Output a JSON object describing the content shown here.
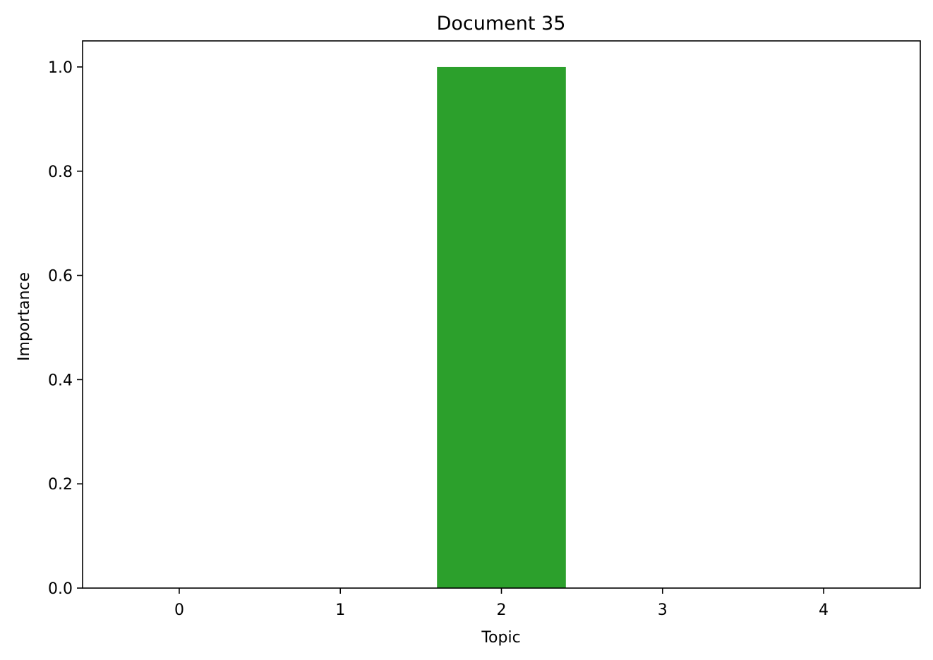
{
  "chart_data": {
    "type": "bar",
    "title": "Document 35",
    "xlabel": "Topic",
    "ylabel": "Importance",
    "categories": [
      "0",
      "1",
      "2",
      "3",
      "4"
    ],
    "values": [
      0,
      0,
      1.0,
      0,
      0
    ],
    "bar_colors": [
      "#1f77b4",
      "#ff7f0e",
      "#2ca02c",
      "#d62728",
      "#9467bd"
    ],
    "ylim": [
      0,
      1.05
    ],
    "yticks": [
      "0.0",
      "0.2",
      "0.4",
      "0.6",
      "0.8",
      "1.0"
    ],
    "grid": false,
    "legend": "none"
  }
}
